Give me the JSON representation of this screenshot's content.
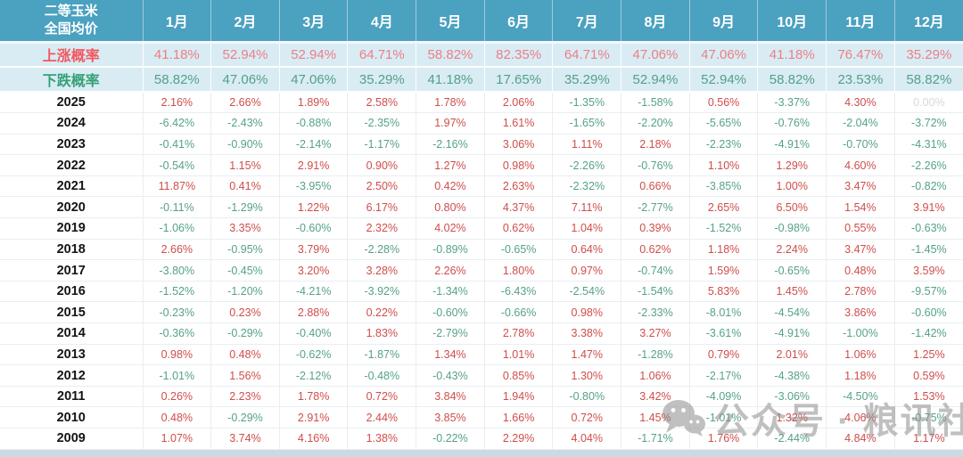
{
  "header": {
    "product_line1": "二等玉米",
    "product_line2": "全国均价"
  },
  "watermark": {
    "text": "公众号 · 粮讯社",
    "icon": "wechat-icon"
  },
  "colors": {
    "header_bg": "#4BA1C0",
    "prob_bg": "#D9ECF4",
    "pos": "#CE4E4B",
    "neg": "#55A189",
    "rise_label": "#F2575E",
    "fall_label": "#35A176",
    "rise_val": "#EE7E86",
    "fall_val": "#54A086",
    "future": "#D5D8DA",
    "grid": "#E9EEF2",
    "watermark": "#8E8E8E"
  },
  "chart_data": {
    "type": "table",
    "title": "二等玉米全国均价",
    "columns": [
      "1月",
      "2月",
      "3月",
      "4月",
      "5月",
      "6月",
      "7月",
      "8月",
      "9月",
      "10月",
      "11月",
      "12月"
    ],
    "rows": [
      {
        "label": "上涨概率",
        "kind": "rise",
        "values": [
          41.18,
          52.94,
          52.94,
          64.71,
          58.82,
          82.35,
          64.71,
          47.06,
          47.06,
          41.18,
          76.47,
          35.29
        ]
      },
      {
        "label": "下跌概率",
        "kind": "fall",
        "values": [
          58.82,
          47.06,
          47.06,
          35.29,
          41.18,
          17.65,
          35.29,
          52.94,
          52.94,
          58.82,
          23.53,
          58.82
        ]
      },
      {
        "label": "2025",
        "kind": "year",
        "values": [
          2.16,
          2.66,
          1.89,
          2.58,
          1.78,
          2.06,
          -1.35,
          -1.58,
          0.56,
          -3.37,
          4.3,
          0.0
        ]
      },
      {
        "label": "2024",
        "kind": "year",
        "values": [
          -6.42,
          -2.43,
          -0.88,
          -2.35,
          1.97,
          1.61,
          -1.65,
          -2.2,
          -5.65,
          -0.76,
          -2.04,
          -3.72
        ]
      },
      {
        "label": "2023",
        "kind": "year",
        "values": [
          -0.41,
          -0.9,
          -2.14,
          -1.17,
          -2.16,
          3.06,
          1.11,
          2.18,
          -2.23,
          -4.91,
          -0.7,
          -4.31
        ]
      },
      {
        "label": "2022",
        "kind": "year",
        "values": [
          -0.54,
          1.15,
          2.91,
          0.9,
          1.27,
          0.98,
          -2.26,
          -0.76,
          1.1,
          1.29,
          4.6,
          -2.26
        ]
      },
      {
        "label": "2021",
        "kind": "year",
        "values": [
          11.87,
          0.41,
          -3.95,
          2.5,
          0.42,
          2.63,
          -2.32,
          0.66,
          -3.85,
          1.0,
          3.47,
          -0.82
        ]
      },
      {
        "label": "2020",
        "kind": "year",
        "values": [
          -0.11,
          -1.29,
          1.22,
          6.17,
          0.8,
          4.37,
          7.11,
          -2.77,
          2.65,
          6.5,
          1.54,
          3.91
        ]
      },
      {
        "label": "2019",
        "kind": "year",
        "values": [
          -1.06,
          3.35,
          -0.6,
          2.32,
          4.02,
          0.62,
          1.04,
          0.39,
          -1.52,
          -0.98,
          0.55,
          -0.63
        ]
      },
      {
        "label": "2018",
        "kind": "year",
        "values": [
          2.66,
          -0.95,
          3.79,
          -2.28,
          -0.89,
          -0.65,
          0.64,
          0.62,
          1.18,
          2.24,
          3.47,
          -1.45
        ]
      },
      {
        "label": "2017",
        "kind": "year",
        "values": [
          -3.8,
          -0.45,
          3.2,
          3.28,
          2.26,
          1.8,
          0.97,
          -0.74,
          1.59,
          -0.65,
          0.48,
          3.59
        ]
      },
      {
        "label": "2016",
        "kind": "year",
        "values": [
          -1.52,
          -1.2,
          -4.21,
          -3.92,
          -1.34,
          -6.43,
          -2.54,
          -1.54,
          5.83,
          1.45,
          2.78,
          -9.57
        ]
      },
      {
        "label": "2015",
        "kind": "year",
        "values": [
          -0.23,
          0.23,
          2.88,
          0.22,
          -0.6,
          -0.66,
          0.98,
          -2.33,
          -8.01,
          -4.54,
          3.86,
          -0.6
        ]
      },
      {
        "label": "2014",
        "kind": "year",
        "values": [
          -0.36,
          -0.29,
          -0.4,
          1.83,
          -2.79,
          2.78,
          3.38,
          3.27,
          -3.61,
          -4.91,
          -1.0,
          -1.42
        ]
      },
      {
        "label": "2013",
        "kind": "year",
        "values": [
          0.98,
          0.48,
          -0.62,
          -1.87,
          1.34,
          1.01,
          1.47,
          -1.28,
          0.79,
          2.01,
          1.06,
          1.25
        ]
      },
      {
        "label": "2012",
        "kind": "year",
        "values": [
          -1.01,
          1.56,
          -2.12,
          -0.48,
          -0.43,
          0.85,
          1.3,
          1.06,
          -2.17,
          -4.38,
          1.18,
          0.59
        ]
      },
      {
        "label": "2011",
        "kind": "year",
        "values": [
          0.26,
          2.23,
          1.78,
          0.72,
          3.84,
          1.94,
          -0.8,
          3.42,
          -4.09,
          -3.06,
          -4.5,
          1.53
        ]
      },
      {
        "label": "2010",
        "kind": "year",
        "values": [
          0.48,
          -0.29,
          2.91,
          2.44,
          3.85,
          1.66,
          0.72,
          1.45,
          -1.01,
          1.32,
          4.06,
          -0.75
        ]
      },
      {
        "label": "2009",
        "kind": "year",
        "values": [
          1.07,
          3.74,
          4.16,
          1.38,
          -0.22,
          2.29,
          4.04,
          -1.71,
          1.76,
          -2.44,
          4.84,
          1.17
        ]
      }
    ]
  }
}
